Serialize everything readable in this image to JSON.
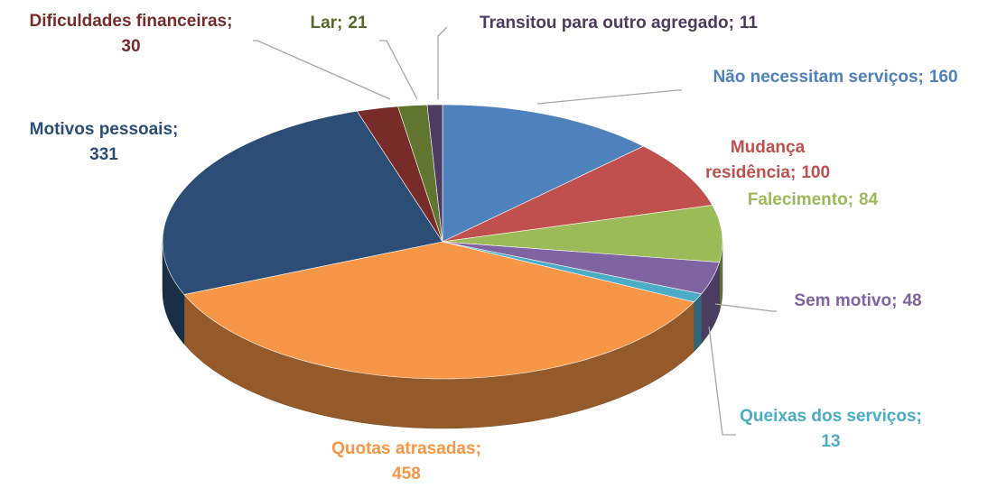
{
  "chart_data": {
    "type": "pie",
    "categories": [
      "Não necessitam serviços",
      "Mudança residência",
      "Falecimento",
      "Sem motivo",
      "Queixas dos serviços",
      "Quotas atrasadas",
      "Motivos pessoais",
      "Dificuldades financeiras",
      "Lar",
      "Transitou para outro agregado"
    ],
    "values": [
      160,
      100,
      84,
      48,
      13,
      458,
      331,
      30,
      21,
      11
    ],
    "colors": [
      "#4f81bd",
      "#c0504d",
      "#9bbb59",
      "#8064a2",
      "#4bacc6",
      "#f79646",
      "#2c4d75",
      "#772c2a",
      "#5f7530",
      "#4d3b62"
    ],
    "label_separator": ";"
  }
}
